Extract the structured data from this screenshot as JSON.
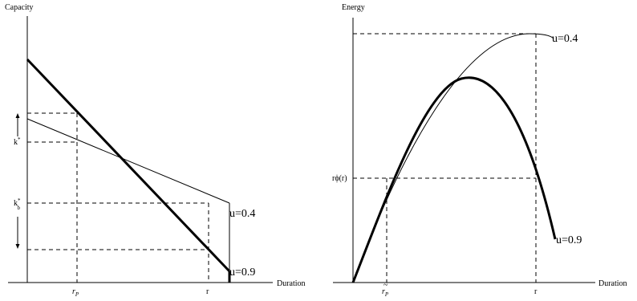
{
  "left_panel": {
    "y_axis_label": "Capacity",
    "x_axis_label": "Duration",
    "x_tick_rp": "r",
    "x_tick_rp_sub": "P",
    "x_tick_r": "r",
    "y_tick_k": "k",
    "y_tick_k_sup": "*",
    "y_tick_kb": "k",
    "y_tick_kb_sup": "*",
    "y_tick_kb_sub": "b",
    "curve_label_04": "u=0.4",
    "curve_label_09": "u=0.9"
  },
  "right_panel": {
    "y_axis_label": "Energy",
    "x_axis_label": "Duration",
    "x_tick_rp": "r",
    "x_tick_rp_sub": "P",
    "x_tick_r": "r",
    "y_tick_rphi": "rϕ(r)",
    "curve_label_04": "u=0.4",
    "curve_label_09": "u=0.9"
  }
}
